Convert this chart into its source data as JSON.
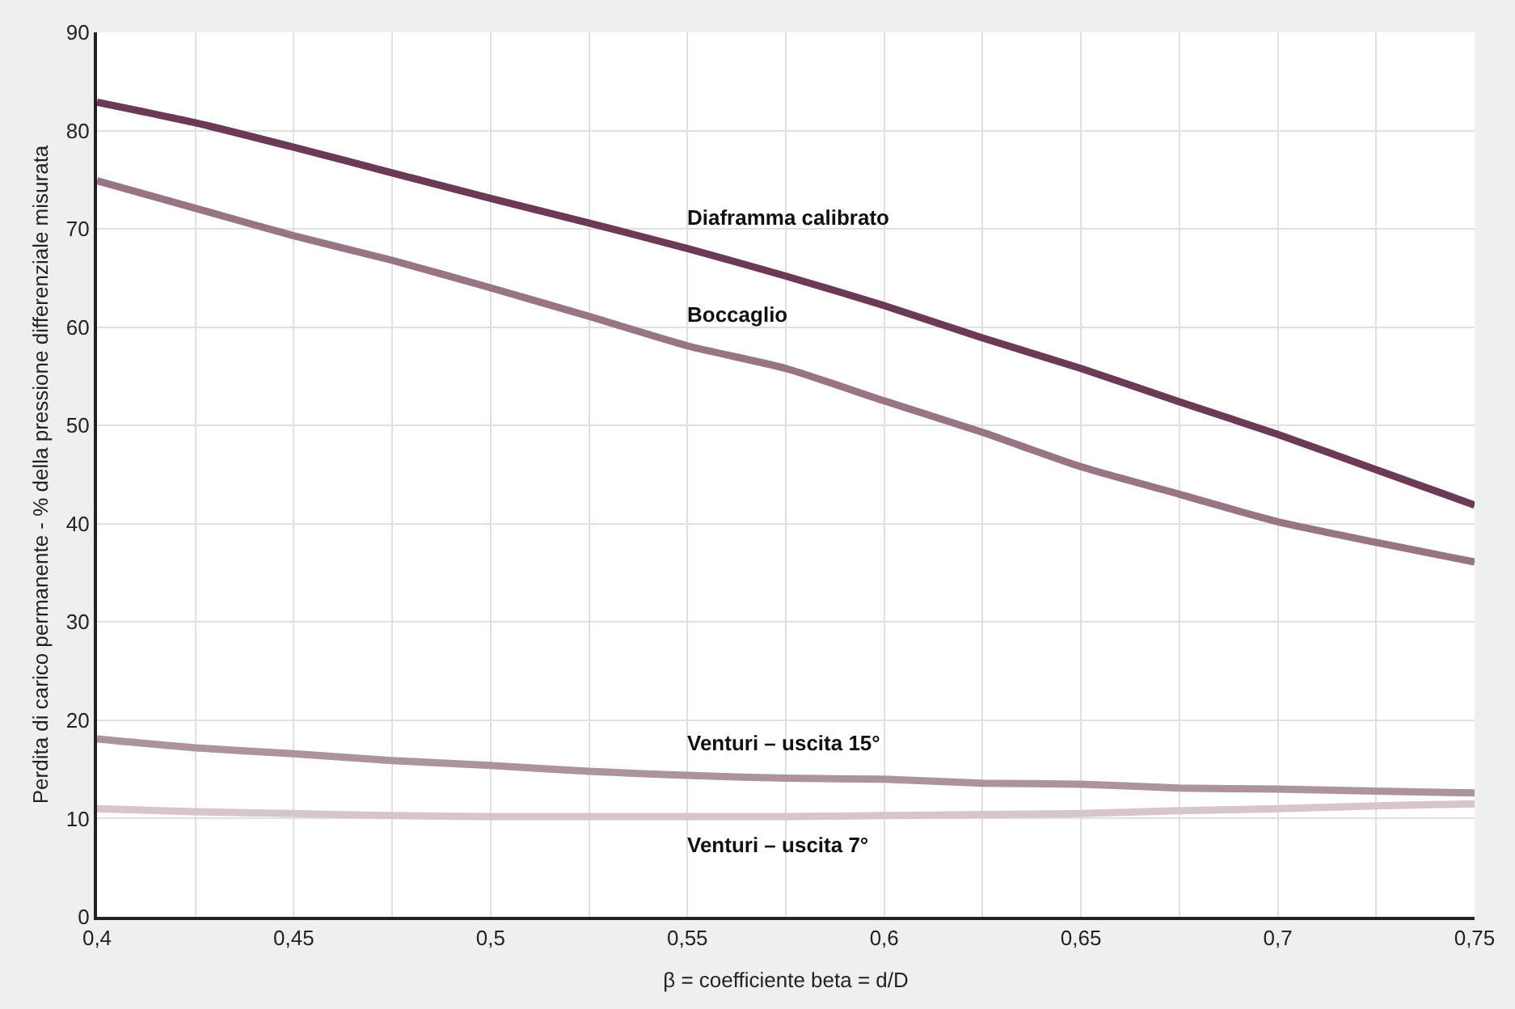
{
  "chart_data": {
    "type": "line",
    "xlabel": "β = coefficiente beta = d/D",
    "ylabel": "Perdita di carico permanente - % della pressione differenziale misurata",
    "x": [
      0.4,
      0.425,
      0.45,
      0.475,
      0.5,
      0.525,
      0.55,
      0.575,
      0.6,
      0.625,
      0.65,
      0.675,
      0.7,
      0.725,
      0.75
    ],
    "series": [
      {
        "name": "Diaframma calibrato",
        "color": "#6b3a55",
        "values": [
          82.9,
          80.8,
          78.3,
          75.7,
          73.1,
          70.6,
          68.0,
          65.2,
          62.2,
          58.9,
          55.8,
          52.4,
          49.1,
          45.5,
          41.9
        ]
      },
      {
        "name": "Boccaglio",
        "color": "#977585",
        "values": [
          74.9,
          72.1,
          69.3,
          66.8,
          64.0,
          61.1,
          58.1,
          55.8,
          52.5,
          49.3,
          45.8,
          43.0,
          40.2,
          38.1,
          36.1
        ]
      },
      {
        "name": "Venturi – uscita 15°",
        "color": "#ad939e",
        "values": [
          18.1,
          17.2,
          16.6,
          15.9,
          15.4,
          14.8,
          14.4,
          14.1,
          14.0,
          13.6,
          13.5,
          13.1,
          13.0,
          12.8,
          12.6
        ]
      },
      {
        "name": "Venturi – uscita 7°",
        "color": "#d6c5ca",
        "values": [
          11.0,
          10.7,
          10.5,
          10.3,
          10.2,
          10.2,
          10.2,
          10.2,
          10.3,
          10.4,
          10.5,
          10.8,
          11.0,
          11.3,
          11.5
        ]
      }
    ],
    "xlim": [
      0.4,
      0.75
    ],
    "xticks": [
      {
        "value": 0.4,
        "label": "0,4"
      },
      {
        "value": 0.425,
        "label": null
      },
      {
        "value": 0.45,
        "label": "0,45"
      },
      {
        "value": 0.475,
        "label": null
      },
      {
        "value": 0.5,
        "label": "0,5"
      },
      {
        "value": 0.525,
        "label": null
      },
      {
        "value": 0.55,
        "label": "0,55"
      },
      {
        "value": 0.575,
        "label": null
      },
      {
        "value": 0.6,
        "label": "0,6"
      },
      {
        "value": 0.625,
        "label": null
      },
      {
        "value": 0.65,
        "label": "0,65"
      },
      {
        "value": 0.675,
        "label": null
      },
      {
        "value": 0.7,
        "label": "0,7"
      },
      {
        "value": 0.725,
        "label": null
      },
      {
        "value": 0.75,
        "label": "0,75"
      }
    ],
    "ylim": [
      0,
      90
    ],
    "yticks": [
      0,
      10,
      20,
      30,
      40,
      50,
      60,
      70,
      80,
      90
    ],
    "grid": true,
    "legend": false,
    "marker": "none",
    "line_style": "solid"
  }
}
